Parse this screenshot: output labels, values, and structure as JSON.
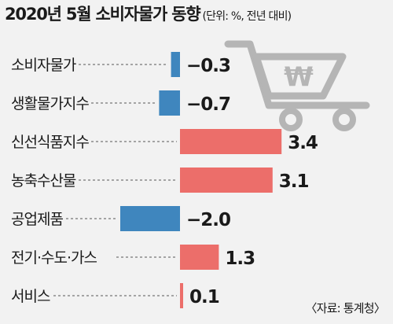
{
  "header": {
    "title": "2020년 5월 소비자물가 동향",
    "subtitle": "(단위: %, 전년 대비)"
  },
  "footer": {
    "source": "〈자료: 통계청〉"
  },
  "icon": {
    "name": "shopping-cart-won-icon",
    "symbol": "₩"
  },
  "colors": {
    "positive": "#ec6e6a",
    "negative": "#3f86be",
    "cart": "#b5b5b5"
  },
  "chart_data": {
    "type": "bar",
    "orientation": "horizontal",
    "title": "2020년 5월 소비자물가 동향",
    "unit": "%",
    "categories": [
      "소비자물가",
      "생활물가지수",
      "신선식품지수",
      "농축수산물",
      "공업제품",
      "전기·수도·가스",
      "서비스"
    ],
    "values": [
      -0.3,
      -0.7,
      3.4,
      3.1,
      -2.0,
      1.3,
      0.1
    ],
    "value_labels": [
      "−0.3",
      "−0.7",
      "3.4",
      "3.1",
      "−2.0",
      "1.3",
      "0.1"
    ],
    "xlim": [
      -2.0,
      3.4
    ],
    "grid": false,
    "legend": "none"
  }
}
